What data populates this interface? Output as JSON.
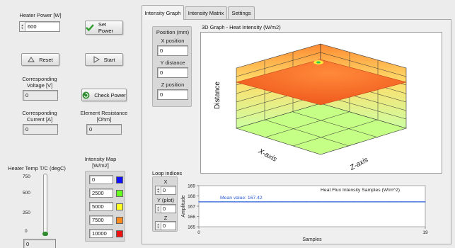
{
  "left": {
    "heater_power_label": "Heater Power [W]",
    "heater_power_value": "600",
    "set_power_label": "Set Power",
    "reset_label": "Reset",
    "start_label": "Start",
    "voltage_label_1": "Corresponding",
    "voltage_label_2": "Voltage [V]",
    "voltage_value": "0",
    "check_power_label": "Check Power",
    "current_label_1": "Corresponding",
    "current_label_2": "Current [A]",
    "current_value": "0",
    "resistance_label_1": "Element Resistance",
    "resistance_label_2": "[Ohm]",
    "resistance_value": "0",
    "temp_label": "Heater Temp T/C (degC)",
    "temp_ticks": [
      "750",
      "500",
      "250",
      "0"
    ],
    "temp_value": "0",
    "temp_level": 0.0,
    "map_label_1": "Intensity Map",
    "map_label_2": "[W/m2]",
    "map_rows": [
      {
        "value": "0",
        "color": "#1010ff"
      },
      {
        "value": "2500",
        "color": "#66ff22"
      },
      {
        "value": "5000",
        "color": "#ffff22"
      },
      {
        "value": "7500",
        "color": "#ff8c22"
      },
      {
        "value": "10000",
        "color": "#ee1111"
      }
    ]
  },
  "tabs": [
    {
      "label": "Intensity Graph",
      "active": true
    },
    {
      "label": "Intensity Matrix",
      "active": false
    },
    {
      "label": "Settings",
      "active": false
    }
  ],
  "position": {
    "title": "Position (mm)",
    "x_label": "X position",
    "x_value": "0",
    "y_label": "Y distance",
    "y_value": "0",
    "z_label": "Z position",
    "z_value": "0"
  },
  "graph3d": {
    "title": "3D Graph - Heat Intensity (W/m2)",
    "x_axis": "X-axis",
    "z_axis": "Z-axis",
    "y_axis": "Distance"
  },
  "loop": {
    "title": "Loop indices",
    "x_label": "X",
    "x_value": "0",
    "y_label": "Y (plot)",
    "y_value": "0",
    "z_label": "Z",
    "z_value": "0"
  },
  "chart_data": {
    "type": "line",
    "title": "Heat Flux Intensity Samples (W/m^2)",
    "xlabel": "Samples",
    "ylabel": "Amplitude",
    "xlim": [
      0,
      19
    ],
    "ylim": [
      165,
      169
    ],
    "x_ticks": [
      "0",
      "19"
    ],
    "y_ticks": [
      "169",
      "168",
      "167",
      "166",
      "165"
    ],
    "annotation": "Mean value: 167.42",
    "series": [
      {
        "values": [
          167.42,
          167.42,
          167.42,
          167.42,
          167.42,
          167.42,
          167.42,
          167.42,
          167.42,
          167.42,
          167.42,
          167.42,
          167.42,
          167.42,
          167.42,
          167.42,
          167.42,
          167.42,
          167.42,
          167.42
        ],
        "color": "#2a5bd7"
      }
    ]
  }
}
